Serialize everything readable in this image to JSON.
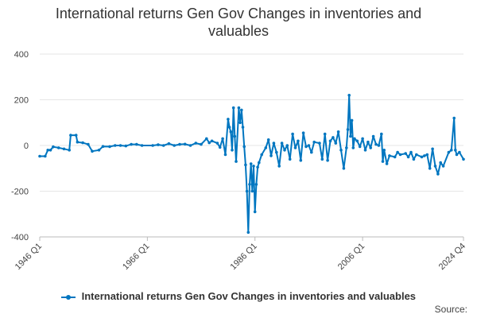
{
  "chart_data": {
    "type": "line",
    "title_lines": [
      "International returns Gen Gov Changes in inventories and",
      "valuables"
    ],
    "xlabel": "",
    "ylabel": "",
    "ylim": [
      -400,
      400
    ],
    "y_ticks": [
      "400",
      "200",
      "0",
      "-200",
      "-400"
    ],
    "x_tick_labels": [
      "1946 Q1",
      "1966 Q1",
      "1986 Q1",
      "2006 Q1",
      "2024 Q4"
    ],
    "grid": true,
    "legend_position": "bottom",
    "series_color": "#0076c0",
    "series": [
      {
        "name": "International returns Gen Gov Changes in inventories and valuables",
        "points": [
          [
            "1946 Q1",
            -47
          ],
          [
            "1947 Q1",
            -47
          ],
          [
            "1947 Q3",
            -20
          ],
          [
            "1948 Q1",
            -20
          ],
          [
            "1948 Q3",
            -6
          ],
          [
            "1949 Q3",
            -10
          ],
          [
            "1950 Q3",
            -15
          ],
          [
            "1951 Q3",
            -20
          ],
          [
            "1951 Q4",
            45
          ],
          [
            "1952 Q4",
            45
          ],
          [
            "1953 Q1",
            15
          ],
          [
            "1954 Q1",
            12
          ],
          [
            "1955 Q1",
            5
          ],
          [
            "1955 Q4",
            -25
          ],
          [
            "1957 Q1",
            -20
          ],
          [
            "1957 Q4",
            -4
          ],
          [
            "1959 Q1",
            -5
          ],
          [
            "1960 Q1",
            0
          ],
          [
            "1961 Q1",
            0
          ],
          [
            "1962 Q1",
            -2
          ],
          [
            "1963 Q1",
            5
          ],
          [
            "1964 Q1",
            5
          ],
          [
            "1965 Q1",
            0
          ],
          [
            "1967 Q1",
            0
          ],
          [
            "1968 Q1",
            3
          ],
          [
            "1969 Q1",
            0
          ],
          [
            "1970 Q1",
            8
          ],
          [
            "1971 Q1",
            0
          ],
          [
            "1972 Q1",
            5
          ],
          [
            "1973 Q1",
            6
          ],
          [
            "1974 Q1",
            0
          ],
          [
            "1975 Q1",
            10
          ],
          [
            "1976 Q1",
            5
          ],
          [
            "1977 Q1",
            30
          ],
          [
            "1977 Q3",
            12
          ],
          [
            "1978 Q1",
            20
          ],
          [
            "1979 Q1",
            10
          ],
          [
            "1979 Q3",
            -8
          ],
          [
            "1980 Q1",
            30
          ],
          [
            "1980 Q3",
            -40
          ],
          [
            "1981 Q1",
            115
          ],
          [
            "1981 Q2",
            80
          ],
          [
            "1981 Q3",
            60
          ],
          [
            "1981 Q4",
            -20
          ],
          [
            "1982 Q1",
            165
          ],
          [
            "1982 Q2",
            40
          ],
          [
            "1982 Q3",
            -70
          ],
          [
            "1983 Q1",
            165
          ],
          [
            "1983 Q2",
            100
          ],
          [
            "1983 Q3",
            155
          ],
          [
            "1983 Q4",
            80
          ],
          [
            "1984 Q1",
            -5
          ],
          [
            "1984 Q2",
            -85
          ],
          [
            "1984 Q3",
            -200
          ],
          [
            "1984 Q4",
            -380
          ],
          [
            "1985 Q1",
            -170
          ],
          [
            "1985 Q2",
            -80
          ],
          [
            "1985 Q3",
            -200
          ],
          [
            "1985 Q4",
            -90
          ],
          [
            "1986 Q1",
            -290
          ],
          [
            "1986 Q2",
            -170
          ],
          [
            "1986 Q3",
            -95
          ],
          [
            "1986 Q4",
            -75
          ],
          [
            "1987 Q2",
            -40
          ],
          [
            "1988 Q1",
            -10
          ],
          [
            "1988 Q3",
            25
          ],
          [
            "1989 Q1",
            -45
          ],
          [
            "1989 Q3",
            10
          ],
          [
            "1990 Q1",
            -30
          ],
          [
            "1990 Q3",
            -90
          ],
          [
            "1991 Q1",
            10
          ],
          [
            "1991 Q3",
            -20
          ],
          [
            "1992 Q1",
            0
          ],
          [
            "1992 Q3",
            -60
          ],
          [
            "1993 Q1",
            50
          ],
          [
            "1993 Q3",
            -10
          ],
          [
            "1994 Q1",
            20
          ],
          [
            "1994 Q3",
            -65
          ],
          [
            "1995 Q1",
            55
          ],
          [
            "1995 Q3",
            -5
          ],
          [
            "1996 Q1",
            0
          ],
          [
            "1996 Q3",
            -30
          ],
          [
            "1997 Q1",
            15
          ],
          [
            "1998 Q1",
            10
          ],
          [
            "1998 Q3",
            -60
          ],
          [
            "1999 Q1",
            50
          ],
          [
            "1999 Q3",
            -65
          ],
          [
            "2000 Q1",
            20
          ],
          [
            "2000 Q3",
            35
          ],
          [
            "2001 Q1",
            10
          ],
          [
            "2001 Q3",
            60
          ],
          [
            "2002 Q1",
            -20
          ],
          [
            "2002 Q3",
            -100
          ],
          [
            "2003 Q1",
            -10
          ],
          [
            "2003 Q2",
            70
          ],
          [
            "2003 Q3",
            220
          ],
          [
            "2003 Q4",
            40
          ],
          [
            "2004 Q1",
            110
          ],
          [
            "2004 Q2",
            -10
          ],
          [
            "2004 Q3",
            30
          ],
          [
            "2005 Q1",
            20
          ],
          [
            "2005 Q3",
            -5
          ],
          [
            "2006 Q1",
            30
          ],
          [
            "2006 Q3",
            -20
          ],
          [
            "2007 Q1",
            15
          ],
          [
            "2007 Q3",
            -10
          ],
          [
            "2008 Q1",
            40
          ],
          [
            "2008 Q3",
            5
          ],
          [
            "2009 Q1",
            0
          ],
          [
            "2009 Q3",
            50
          ],
          [
            "2009 Q4",
            -70
          ],
          [
            "2010 Q1",
            -20
          ],
          [
            "2010 Q3",
            -80
          ],
          [
            "2011 Q1",
            -45
          ],
          [
            "2012 Q1",
            -50
          ],
          [
            "2012 Q3",
            -30
          ],
          [
            "2013 Q1",
            -40
          ],
          [
            "2014 Q1",
            -35
          ],
          [
            "2014 Q3",
            -50
          ],
          [
            "2015 Q1",
            -30
          ],
          [
            "2015 Q3",
            -60
          ],
          [
            "2016 Q1",
            -40
          ],
          [
            "2017 Q1",
            -50
          ],
          [
            "2017 Q3",
            -45
          ],
          [
            "2018 Q1",
            -40
          ],
          [
            "2018 Q3",
            -100
          ],
          [
            "2019 Q1",
            -15
          ],
          [
            "2019 Q3",
            -90
          ],
          [
            "2020 Q1",
            -125
          ],
          [
            "2020 Q3",
            -75
          ],
          [
            "2021 Q1",
            -90
          ],
          [
            "2022 Q1",
            -30
          ],
          [
            "2022 Q3",
            -20
          ],
          [
            "2023 Q1",
            120
          ],
          [
            "2023 Q2",
            -20
          ],
          [
            "2023 Q3",
            -40
          ],
          [
            "2024 Q1",
            -30
          ],
          [
            "2024 Q4",
            -60
          ]
        ]
      }
    ]
  },
  "credit": "Source:"
}
